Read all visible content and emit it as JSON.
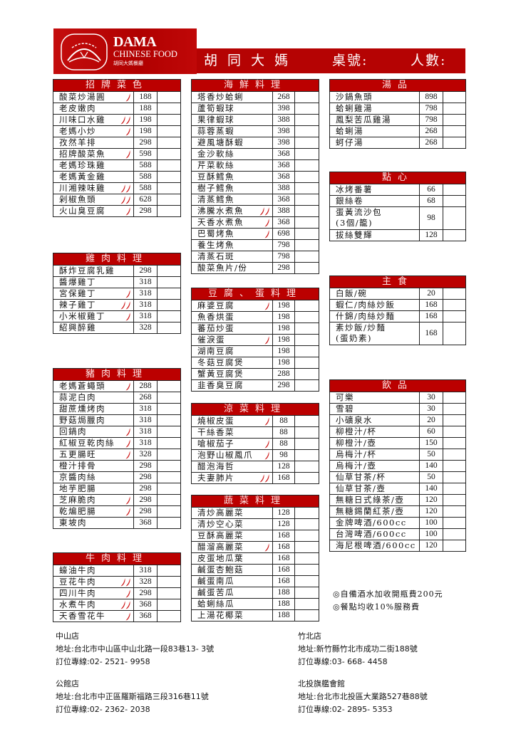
{
  "header": {
    "logo_title": "DAMA",
    "logo_subtitle": "CHINESE FOOD",
    "logo_chinese": "胡同大媽餐廳",
    "restaurant_name": "胡 同 大 媽",
    "table_no_label": "桌號:",
    "people_label": "人數:",
    "brand_color": "#b50303"
  },
  "sections": [
    {
      "title": "招牌菜色",
      "items": [
        {
          "name": "酸菜炒湯圓",
          "price": "188",
          "spice": 1
        },
        {
          "name": "老皮嫩肉",
          "price": "188",
          "spice": 0
        },
        {
          "name": "川味口水雞",
          "price": "198",
          "spice": 2
        },
        {
          "name": "老媽小炒",
          "price": "198",
          "spice": 1
        },
        {
          "name": "孜然羊排",
          "price": "298",
          "spice": 0
        },
        {
          "name": "招牌酸菜魚",
          "price": "598",
          "spice": 1
        },
        {
          "name": "老媽珍珠雞",
          "price": "588",
          "spice": 0
        },
        {
          "name": "老媽黃金雞",
          "price": "588",
          "spice": 0
        },
        {
          "name": "川湘辣味雞",
          "price": "588",
          "spice": 2
        },
        {
          "name": "剁椒魚頭",
          "price": "628",
          "spice": 2
        },
        {
          "name": "火山臭豆腐",
          "price": "298",
          "spice": 1
        }
      ]
    },
    {
      "title": "雞肉料理",
      "items": [
        {
          "name": "酥炸豆腐乳雞",
          "price": "298",
          "spice": 0
        },
        {
          "name": "醬爆雞丁",
          "price": "318",
          "spice": 0
        },
        {
          "name": "宮保雞丁",
          "price": "318",
          "spice": 1
        },
        {
          "name": "辣子雞丁",
          "price": "318",
          "spice": 2
        },
        {
          "name": "小米椒雞丁",
          "price": "318",
          "spice": 1
        },
        {
          "name": "紹興醉雞",
          "price": "328",
          "spice": 0
        }
      ]
    },
    {
      "title": "豬肉料理",
      "items": [
        {
          "name": "老媽蒼蠅頭",
          "price": "288",
          "spice": 1
        },
        {
          "name": "蒜泥白肉",
          "price": "268",
          "spice": 0
        },
        {
          "name": "甜蔗燻烤肉",
          "price": "318",
          "spice": 0
        },
        {
          "name": "野菇焗臘肉",
          "price": "318",
          "spice": 0
        },
        {
          "name": "回鍋肉",
          "price": "318",
          "spice": 1
        },
        {
          "name": "紅椒豆乾肉絲",
          "price": "318",
          "spice": 1
        },
        {
          "name": "五更腸旺",
          "price": "328",
          "spice": 1
        },
        {
          "name": "橙汁排骨",
          "price": "298",
          "spice": 0
        },
        {
          "name": "京醬肉絲",
          "price": "298",
          "spice": 0
        },
        {
          "name": "地芋肥腸",
          "price": "298",
          "spice": 0
        },
        {
          "name": "芝麻脆肉",
          "price": "298",
          "spice": 1
        },
        {
          "name": "乾煸肥腸",
          "price": "298",
          "spice": 1
        },
        {
          "name": "東坡肉",
          "price": "368",
          "spice": 0
        }
      ]
    },
    {
      "title": "牛肉料理",
      "items": [
        {
          "name": "蠔油牛肉",
          "price": "318",
          "spice": 0
        },
        {
          "name": "豆花牛肉",
          "price": "328",
          "spice": 2
        },
        {
          "name": "四川牛肉",
          "price": "298",
          "spice": 1
        },
        {
          "name": "水煮牛肉",
          "price": "368",
          "spice": 2
        },
        {
          "name": "天香雪花牛",
          "price": "368",
          "spice": 1
        }
      ]
    },
    {
      "title": "海鮮料理",
      "items": [
        {
          "name": "塔香炒蛤蜊",
          "price": "268",
          "spice": 0
        },
        {
          "name": "蘆筍蝦球",
          "price": "398",
          "spice": 0
        },
        {
          "name": "果律蝦球",
          "price": "388",
          "spice": 0
        },
        {
          "name": "蒜蓉蒸蝦",
          "price": "398",
          "spice": 0
        },
        {
          "name": "避風塘酥蝦",
          "price": "398",
          "spice": 0
        },
        {
          "name": "金沙軟絲",
          "price": "368",
          "spice": 0
        },
        {
          "name": "芹菜軟絲",
          "price": "368",
          "spice": 0
        },
        {
          "name": "豆酥鱈魚",
          "price": "368",
          "spice": 0
        },
        {
          "name": "樹子鱈魚",
          "price": "388",
          "spice": 0
        },
        {
          "name": "清蒸鱈魚",
          "price": "368",
          "spice": 0
        },
        {
          "name": "沸騰水煮魚",
          "price": "388",
          "spice": 2
        },
        {
          "name": "天香水煮魚",
          "price": "368",
          "spice": 1
        },
        {
          "name": "巴蜀烤魚",
          "price": "698",
          "spice": 1
        },
        {
          "name": "養生烤魚",
          "price": "798",
          "spice": 0
        },
        {
          "name": "清蒸石斑",
          "price": "798",
          "spice": 0
        },
        {
          "name": "酸菜魚片/份",
          "price": "298",
          "spice": 0
        }
      ]
    },
    {
      "title": "豆腐、蛋料理",
      "items": [
        {
          "name": "麻婆豆腐",
          "price": "198",
          "spice": 1
        },
        {
          "name": "魚香烘蛋",
          "price": "198",
          "spice": 0
        },
        {
          "name": "蕃茄炒蛋",
          "price": "198",
          "spice": 0
        },
        {
          "name": "催淚蛋",
          "price": "198",
          "spice": 1
        },
        {
          "name": "湖南豆腐",
          "price": "198",
          "spice": 0
        },
        {
          "name": "冬菇豆腐煲",
          "price": "198",
          "spice": 0
        },
        {
          "name": "蟹黃豆腐煲",
          "price": "288",
          "spice": 0
        },
        {
          "name": "韭香臭豆腐",
          "price": "298",
          "spice": 0
        }
      ]
    },
    {
      "title": "涼菜料理",
      "items": [
        {
          "name": "燒椒皮蛋",
          "price": "88",
          "spice": 1
        },
        {
          "name": "干絲香菜",
          "price": "88",
          "spice": 0
        },
        {
          "name": "嗆椒茄子",
          "price": "88",
          "spice": 1
        },
        {
          "name": "泡野山椒鳳爪",
          "price": "98",
          "spice": 1
        },
        {
          "name": "醋泡海哲",
          "price": "128",
          "spice": 0
        },
        {
          "name": "夫妻肺片",
          "price": "168",
          "spice": 2
        }
      ]
    },
    {
      "title": "蔬菜料理",
      "items": [
        {
          "name": "清炒高麗菜",
          "price": "128",
          "spice": 0
        },
        {
          "name": "清炒空心菜",
          "price": "128",
          "spice": 0
        },
        {
          "name": "豆酥高麗菜",
          "price": "168",
          "spice": 0
        },
        {
          "name": "醋溜高麗菜",
          "price": "168",
          "spice": 1
        },
        {
          "name": "皮蛋地瓜葉",
          "price": "168",
          "spice": 0
        },
        {
          "name": "鹹蛋杏鮑菇",
          "price": "168",
          "spice": 0
        },
        {
          "name": "鹹蛋南瓜",
          "price": "168",
          "spice": 0
        },
        {
          "name": "鹹蛋苦瓜",
          "price": "188",
          "spice": 0
        },
        {
          "name": "蛤蜊絲瓜",
          "price": "188",
          "spice": 0
        },
        {
          "name": "上湯花椰菜",
          "price": "188",
          "spice": 0
        }
      ]
    },
    {
      "title": "湯品",
      "items": [
        {
          "name": "沙鍋魚頭",
          "price": "898",
          "spice": 0
        },
        {
          "name": "蛤蜊雞湯",
          "price": "798",
          "spice": 0
        },
        {
          "name": "鳳梨苦瓜雞湯",
          "price": "798",
          "spice": 0
        },
        {
          "name": "蛤蜊湯",
          "price": "268",
          "spice": 0
        },
        {
          "name": "蚵仔湯",
          "price": "268",
          "spice": 0
        }
      ]
    },
    {
      "title": "點心",
      "items": [
        {
          "name": "冰烤番薯",
          "price": "66",
          "spice": 0
        },
        {
          "name": "銀絲卷",
          "price": "68",
          "spice": 0
        },
        {
          "name": "蛋黃流沙包\n(3個/籠)",
          "price": "98",
          "spice": 0
        },
        {
          "name": "拔絲雙輝",
          "price": "128",
          "spice": 0
        }
      ]
    },
    {
      "title": "主食",
      "items": [
        {
          "name": "白飯/碗",
          "price": "20",
          "spice": 0
        },
        {
          "name": "蝦仁/肉絲炒飯",
          "price": "168",
          "spice": 0
        },
        {
          "name": "什錦/肉絲炒麵",
          "price": "168",
          "spice": 0
        },
        {
          "name": "素炒飯/炒麵\n(蛋奶素)",
          "price": "168",
          "spice": 0
        }
      ]
    },
    {
      "title": "飲品",
      "items": [
        {
          "name": "可樂",
          "price": "30",
          "spice": 0
        },
        {
          "name": "雪碧",
          "price": "30",
          "spice": 0
        },
        {
          "name": "小礦泉水",
          "price": "20",
          "spice": 0
        },
        {
          "name": "柳橙汁/杯",
          "price": "60",
          "spice": 0
        },
        {
          "name": "柳橙汁/壺",
          "price": "150",
          "spice": 0
        },
        {
          "name": "烏梅汁/杯",
          "price": "50",
          "spice": 0
        },
        {
          "name": "烏梅汁/壺",
          "price": "140",
          "spice": 0
        },
        {
          "name": "仙草甘茶/杯",
          "price": "50",
          "spice": 0
        },
        {
          "name": "仙草甘茶/壺",
          "price": "140",
          "spice": 0
        },
        {
          "name": "無糖日式綠茶/壺",
          "price": "120",
          "spice": 0
        },
        {
          "name": "無糖錫蘭紅茶/壺",
          "price": "120",
          "spice": 0
        },
        {
          "name": "金牌啤酒/600cc",
          "price": "100",
          "spice": 0
        },
        {
          "name": "台灣啤酒/600cc",
          "price": "100",
          "spice": 0
        },
        {
          "name": "海尼根啤酒/600cc",
          "price": "120",
          "spice": 0
        }
      ]
    }
  ],
  "notes": [
    "◎自備酒水加收開瓶費200元",
    "◎餐點均收10%服務費"
  ],
  "stores": [
    {
      "name": "中山店",
      "address": "地址:台北市中山區中山北路一段83巷13- 3號",
      "phone": "訂位專線:02- 2521- 9958"
    },
    {
      "name": "竹北店",
      "address": "地址:新竹縣竹北市成功二街188號",
      "phone": "訂位專線:03- 668- 4458"
    },
    {
      "name": "公館店",
      "address": "地址:台北市中正區羅斯福路三段316巷11號",
      "phone": "訂位專線:02- 2362- 2038"
    },
    {
      "name": "北投旗艦會館",
      "address": "地址:台北市北投區大業路527巷88號",
      "phone": "訂位專線:02- 2895- 5353"
    }
  ],
  "colors": {
    "header_red": "#bb0000",
    "chili_red": "#cc1010"
  }
}
